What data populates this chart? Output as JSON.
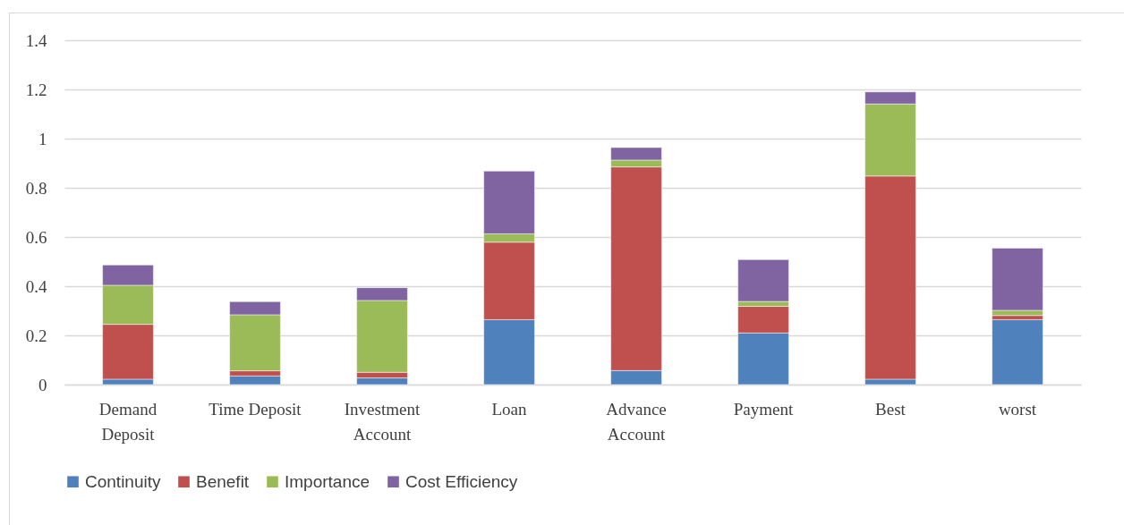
{
  "chart_data": {
    "type": "bar",
    "stacked": true,
    "categories": [
      "Demand Deposit",
      "Time Deposit",
      "Investment Account",
      "Loan",
      "Advance Account",
      "Payment",
      "Best",
      "worst"
    ],
    "series": [
      {
        "name": "Continuity",
        "color": "#4f81bd",
        "values": [
          0.022,
          0.035,
          0.027,
          0.264,
          0.057,
          0.21,
          0.022,
          0.264
        ]
      },
      {
        "name": "Benefit",
        "color": "#c0504d",
        "values": [
          0.223,
          0.021,
          0.023,
          0.315,
          0.828,
          0.108,
          0.826,
          0.017
        ]
      },
      {
        "name": "Importance",
        "color": "#9bbb59",
        "values": [
          0.159,
          0.228,
          0.292,
          0.034,
          0.028,
          0.02,
          0.293,
          0.021
        ]
      },
      {
        "name": "Cost Efficiency",
        "color": "#8064a2",
        "values": [
          0.082,
          0.053,
          0.052,
          0.255,
          0.051,
          0.17,
          0.049,
          0.253
        ]
      }
    ],
    "ylim": [
      0,
      1.4
    ],
    "yticks": [
      0,
      0.2,
      0.4,
      0.6,
      0.8,
      1,
      1.2,
      1.4
    ],
    "grid": "y",
    "legend": "bottom"
  }
}
